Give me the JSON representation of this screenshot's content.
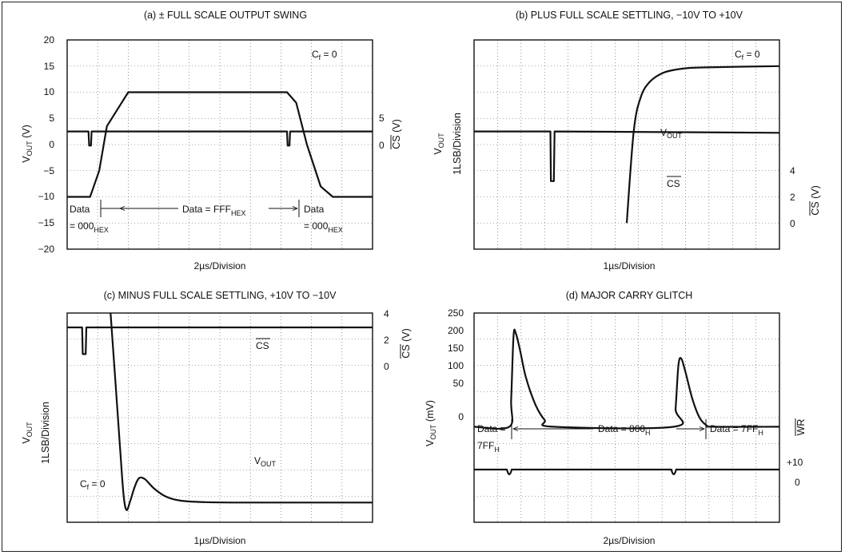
{
  "chart_data": [
    {
      "id": "a",
      "type": "line",
      "title": "(a) ± FULL SCALE OUTPUT SWING",
      "xlabel": "2µs/Division",
      "ylabel_left": "V_OUT (V)",
      "ylabel_right": "CS (V)",
      "ylim": [
        -20,
        20
      ],
      "yticks_left": [
        "20",
        "15",
        "10",
        "5",
        "0",
        "−5",
        "−10",
        "−15",
        "−20"
      ],
      "yticks_right": [
        "5",
        "0"
      ],
      "note": "C_f = 0",
      "series": [
        {
          "x": [
            0,
            0.75,
            1.05,
            1.3,
            2.0,
            7.2,
            7.5,
            7.85,
            8.3,
            8.7,
            10
          ],
          "values": [
            -10,
            -10,
            -5,
            3.5,
            10,
            10,
            8,
            0,
            -8,
            -10,
            -10
          ]
        },
        {
          "x": [
            0,
            0.7,
            0.72,
            0.78,
            0.8,
            7.2,
            7.22,
            7.28,
            7.3,
            10
          ],
          "values": [
            2.5,
            2.5,
            -0.2,
            -0.2,
            2.5,
            2.5,
            -0.2,
            -0.2,
            2.5,
            2.5
          ]
        }
      ],
      "annotations": {
        "data_left_1": "Data",
        "data_left_2": "= 000",
        "data_left_sub": "HEX",
        "data_mid": "Data = FFF",
        "data_mid_sub": "HEX",
        "data_right_1": "Data",
        "data_right_2": "= 000",
        "data_right_sub": "HEX"
      }
    },
    {
      "id": "b",
      "type": "line",
      "title": "(b) PLUS FULL SCALE SETTLING, −10V TO +10V",
      "xlabel": "1µs/Division",
      "ylabel_left_1": "V_OUT",
      "ylabel_left_2": "1LSB/Division",
      "ylabel_right": "CS (V)",
      "yticks_right": [
        "4",
        "2",
        "0"
      ],
      "note": "C_f = 0",
      "labels": {
        "vout": "V_OUT",
        "cs": "CS"
      },
      "series": [
        {
          "x": [
            6.6,
            6.9,
            7.2,
            7.6,
            8.2,
            9.0,
            10.0,
            13.2
          ],
          "values": [
            1.0,
            4.5,
            5.8,
            6.4,
            6.75,
            6.9,
            6.95,
            7.0
          ]
        },
        {
          "x": [
            0,
            3.3,
            3.32,
            3.45,
            3.48,
            13.2
          ],
          "values": [
            4.5,
            4.5,
            2.6,
            2.6,
            4.5,
            4.45
          ]
        }
      ]
    },
    {
      "id": "c",
      "type": "line",
      "title": "(c) MINUS FULL SCALE SETTLING, +10V TO −10V",
      "xlabel": "1µs/Division",
      "ylabel_left_1": "V_OUT",
      "ylabel_left_2": "1LSB/Division",
      "ylabel_right": "CS (V)",
      "yticks_right": [
        "4",
        "2",
        "0"
      ],
      "note": "C_f = 0",
      "labels": {
        "vout": "V_OUT",
        "cs": "CS"
      },
      "series": [
        {
          "x": [
            1.45,
            1.75,
            1.88,
            1.98,
            2.1,
            2.25,
            2.4,
            2.6,
            2.9,
            3.3,
            3.8,
            4.6,
            6,
            8,
            10.2
          ],
          "values": [
            10.2,
            4,
            1.4,
            0.6,
            1.0,
            1.7,
            2.15,
            2.1,
            1.65,
            1.25,
            1.05,
            0.98,
            0.96,
            0.96,
            0.96
          ]
        },
        {
          "x": [
            0,
            0.5,
            0.52,
            0.62,
            0.64,
            10.2
          ],
          "values": [
            9.5,
            9.5,
            8.2,
            8.2,
            9.5,
            9.5
          ]
        }
      ]
    },
    {
      "id": "d",
      "type": "line",
      "title": "(d) MAJOR CARRY GLITCH",
      "xlabel": "2µs/Division",
      "ylabel_left": "V_OUT (mV)",
      "ylabel_right": "WR",
      "ylim": [
        0,
        250
      ],
      "yticks_left": [
        "250",
        "200",
        "150",
        "100",
        "50",
        "0"
      ],
      "yticks_right": [
        "+10",
        "0"
      ],
      "series": [
        {
          "x": [
            0,
            1.5,
            1.58,
            1.68,
            1.78,
            1.95,
            2.2,
            2.6,
            3.0,
            3.4,
            8.5,
            8.58,
            8.7,
            8.82,
            9.0,
            9.3,
            9.6,
            9.9,
            10.2,
            13
          ],
          "values": [
            0,
            0,
            60,
            200,
            205,
            170,
            110,
            50,
            15,
            0,
            0,
            40,
            135,
            150,
            120,
            60,
            20,
            3,
            0,
            0
          ]
        }
      ],
      "annotations": {
        "data_left_1": "Data =",
        "data_left_2": "7FF",
        "data_left_sub": "H",
        "data_mid": "Data = 800",
        "data_mid_sub": "H",
        "data_right": "Data = 7FF",
        "data_right_sub": "H"
      }
    }
  ]
}
